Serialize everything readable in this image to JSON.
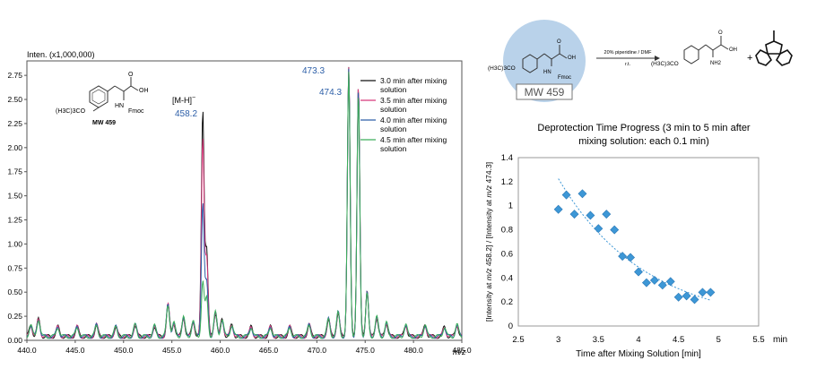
{
  "chart_data": [
    {
      "type": "line",
      "y_axis_title": "Inten. (x1,000,000)",
      "xlabel": "m/z",
      "xlim": [
        440.0,
        485.0
      ],
      "ylim": [
        0.0,
        2.9
      ],
      "x_ticks": [
        "440.0",
        "445.0",
        "450.0",
        "455.0",
        "460.0",
        "465.0",
        "470.0",
        "475.0",
        "480.0",
        "485.0"
      ],
      "y_ticks": [
        "0.00",
        "0.25",
        "0.50",
        "0.75",
        "1.00",
        "1.25",
        "1.50",
        "1.75",
        "2.00",
        "2.25",
        "2.50",
        "2.75"
      ],
      "peak_labels": [
        {
          "text": "[M-H]",
          "sup": "−",
          "mz": 458.2
        },
        {
          "text": "458.2",
          "mz": 458.2
        },
        {
          "text": "473.3",
          "mz": 473.3
        },
        {
          "text": "474.3",
          "mz": 474.3
        }
      ],
      "series": [
        {
          "name": "3.0 min after mixing solution",
          "color": "#111111",
          "peaks": [
            [
              458.2,
              2.35
            ],
            [
              458.6,
              0.9
            ],
            [
              473.3,
              2.8
            ],
            [
              474.3,
              2.62
            ],
            [
              475.2,
              0.5
            ]
          ]
        },
        {
          "name": "3.5 min after mixing solution",
          "color": "#d8397a",
          "peaks": [
            [
              458.2,
              2.08
            ],
            [
              458.6,
              0.8
            ],
            [
              473.3,
              2.78
            ],
            [
              474.3,
              2.6
            ],
            [
              475.2,
              0.48
            ]
          ]
        },
        {
          "name": "4.0 min after mixing solution",
          "color": "#2d5fa8",
          "peaks": [
            [
              458.2,
              1.4
            ],
            [
              458.6,
              0.55
            ],
            [
              473.3,
              2.76
            ],
            [
              474.3,
              2.55
            ],
            [
              475.2,
              0.46
            ]
          ]
        },
        {
          "name": "4.5 min after mixing solution",
          "color": "#3cae5a",
          "peaks": [
            [
              458.2,
              0.57
            ],
            [
              458.6,
              0.4
            ],
            [
              473.3,
              2.74
            ],
            [
              474.3,
              2.5
            ],
            [
              475.2,
              0.44
            ]
          ]
        }
      ],
      "compound_label": "MW 459",
      "compound_formula": "(H3C)3CO",
      "compound_group": "Fmoc"
    },
    {
      "type": "scatter",
      "title": "Deprotection Time Progress (3 min to 5 min after mixing solution: each 0.1 min)",
      "xlabel": "Time after Mixing Solution [min]",
      "ylabel": "[Intensity at m/z 458.2] / [Intensity at m/z 474.3]",
      "xlim": [
        2.5,
        5.5
      ],
      "ylim": [
        0,
        1.4
      ],
      "x_ticks": [
        "2.5",
        "3",
        "3.5",
        "4",
        "4.5",
        "5",
        "5.5"
      ],
      "x_unit": "min",
      "y_ticks": [
        "0",
        "0.2",
        "0.4",
        "0.6",
        "0.8",
        "1",
        "1.2",
        "1.4"
      ],
      "trendline": true,
      "x": [
        3.0,
        3.1,
        3.2,
        3.3,
        3.4,
        3.5,
        3.6,
        3.7,
        3.8,
        3.9,
        4.0,
        4.1,
        4.2,
        4.3,
        4.4,
        4.5,
        4.6,
        4.7,
        4.8,
        4.9
      ],
      "y": [
        0.97,
        1.09,
        0.93,
        1.1,
        0.92,
        0.81,
        0.93,
        0.8,
        0.58,
        0.57,
        0.45,
        0.36,
        0.38,
        0.34,
        0.37,
        0.24,
        0.25,
        0.22,
        0.28,
        0.28
      ]
    }
  ],
  "reaction": {
    "reagent_top": "20% piperidine / DMF",
    "reagent_bottom": "r.t.",
    "start_formula": "(H3C)3CO",
    "start_group": "Fmoc",
    "start_label": "MW 459",
    "product_formula": "(H3C)3CO",
    "product_amine": "NH2",
    "plus": "+"
  },
  "colors": {
    "circle_fill": "#b9d2ea",
    "marker": "#3d97d6",
    "peak_label": "#2d5fa8"
  }
}
